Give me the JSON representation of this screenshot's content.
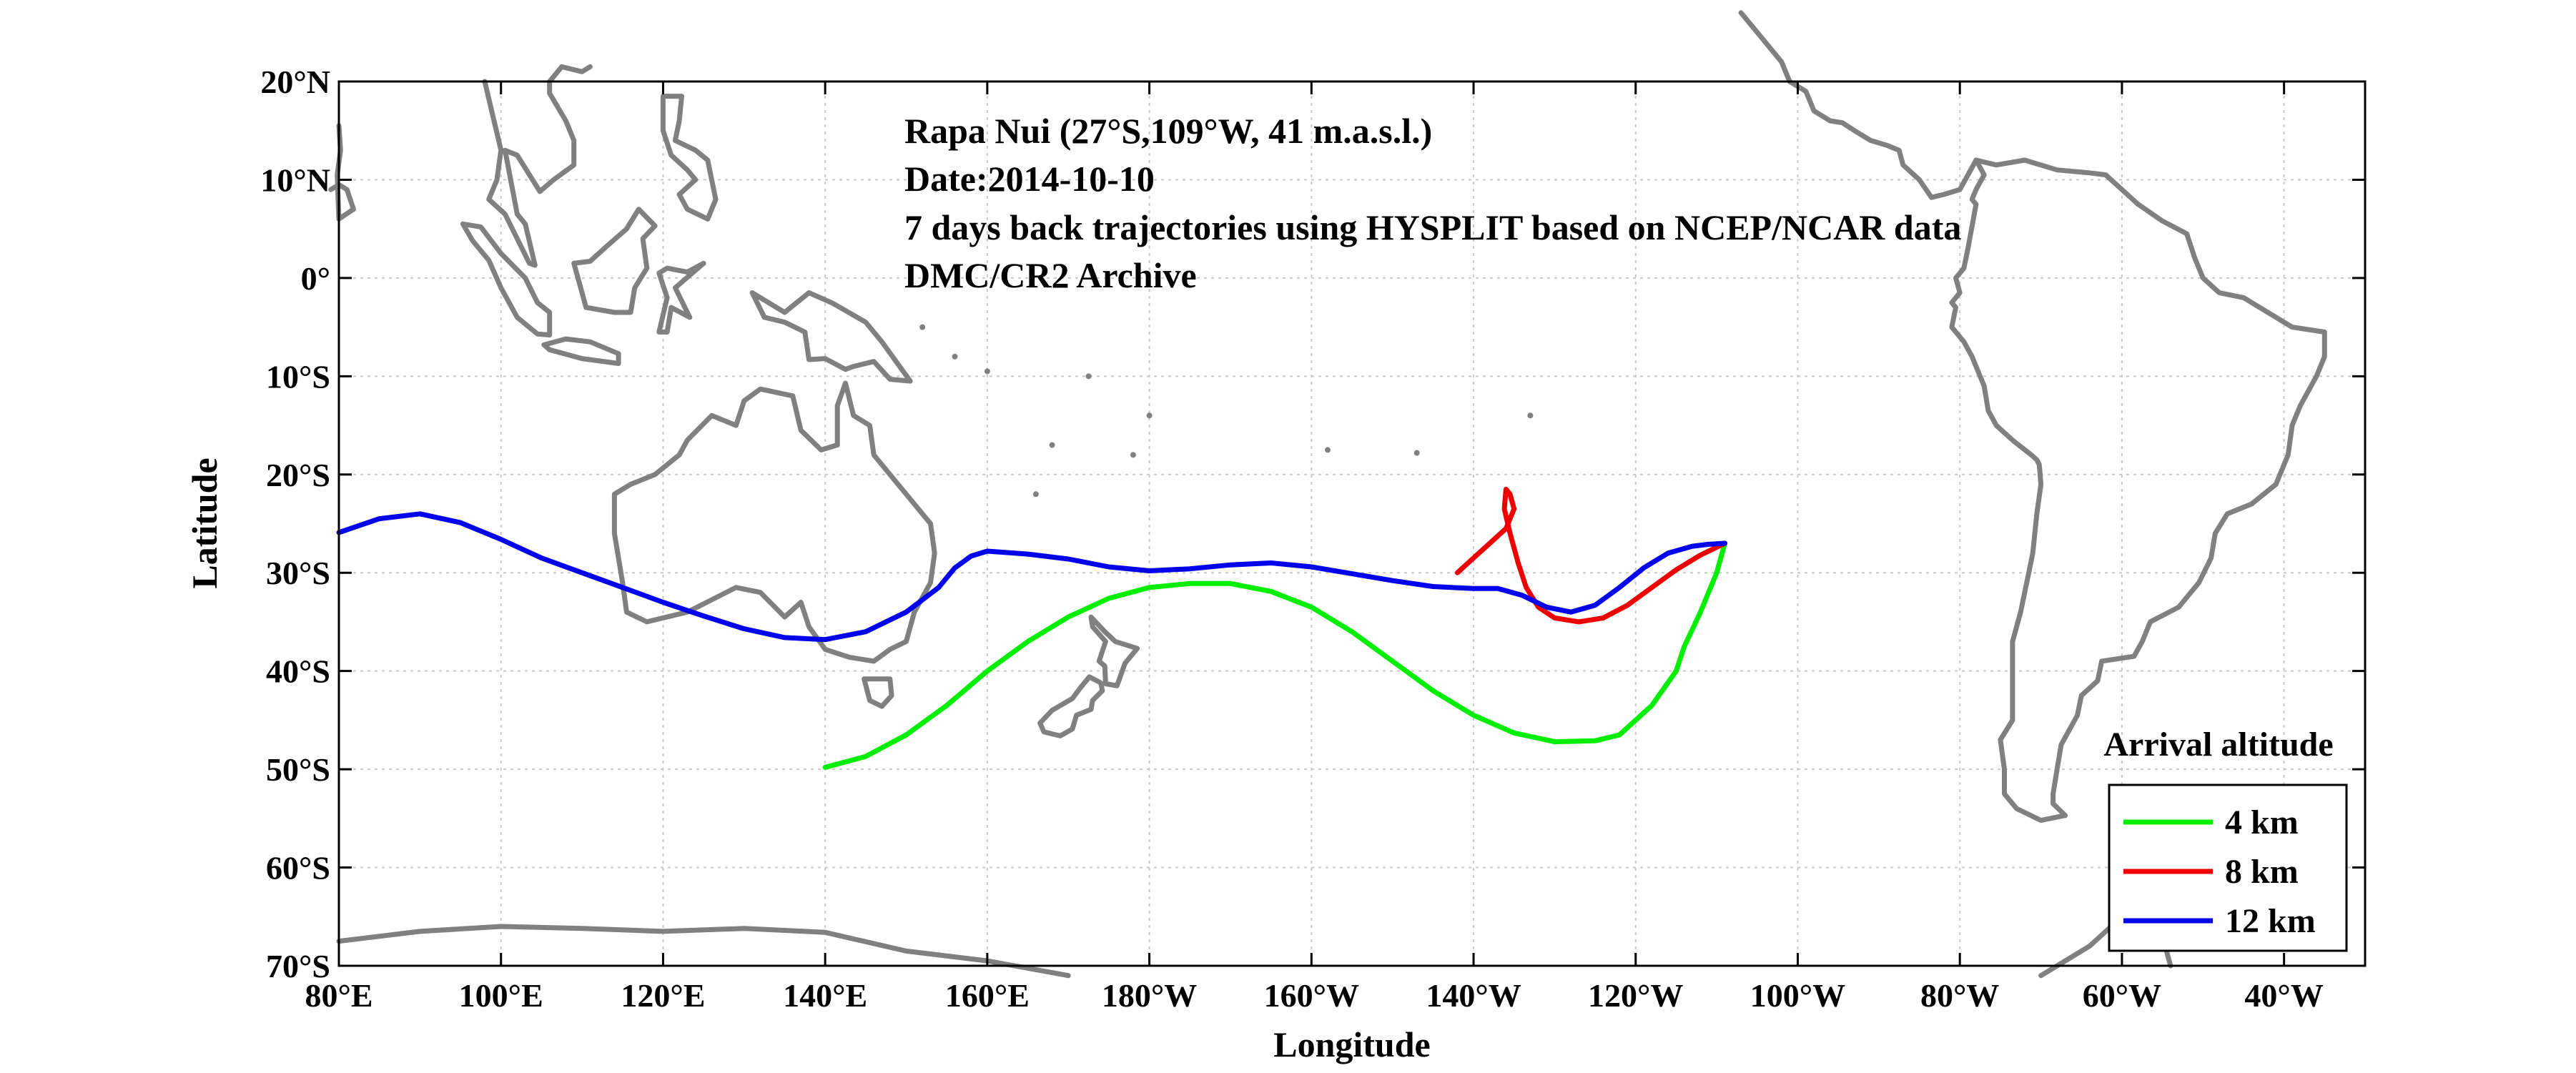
{
  "title_lines": [
    "Rapa Nui (27°S,109°W, 41 m.a.s.l.)",
    "Date:2014-10-10",
    "7 days back trajectories using HYSPLIT based on NCEP/NCAR data",
    "DMC/CR2 Archive"
  ],
  "axes": {
    "xlabel": "Longitude",
    "ylabel": "Latitude",
    "x_range_lon_east": [
      80,
      330
    ],
    "y_range_lat": [
      -70,
      20
    ],
    "x_ticks": [
      {
        "value": 80,
        "label": "80°E"
      },
      {
        "value": 100,
        "label": "100°E"
      },
      {
        "value": 120,
        "label": "120°E"
      },
      {
        "value": 140,
        "label": "140°E"
      },
      {
        "value": 160,
        "label": "160°E"
      },
      {
        "value": 180,
        "label": "180°W"
      },
      {
        "value": 200,
        "label": "160°W"
      },
      {
        "value": 220,
        "label": "140°W"
      },
      {
        "value": 240,
        "label": "120°W"
      },
      {
        "value": 260,
        "label": "100°W"
      },
      {
        "value": 280,
        "label": "80°W"
      },
      {
        "value": 300,
        "label": "60°W"
      },
      {
        "value": 320,
        "label": "40°W"
      }
    ],
    "y_ticks": [
      {
        "value": 20,
        "label": "20°N"
      },
      {
        "value": 10,
        "label": "10°N"
      },
      {
        "value": 0,
        "label": "0°"
      },
      {
        "value": -10,
        "label": "10°S"
      },
      {
        "value": -20,
        "label": "20°S"
      },
      {
        "value": -30,
        "label": "30°S"
      },
      {
        "value": -40,
        "label": "40°S"
      },
      {
        "value": -50,
        "label": "50°S"
      },
      {
        "value": -60,
        "label": "60°S"
      },
      {
        "value": -70,
        "label": "70°S"
      }
    ],
    "grid": true
  },
  "legend": {
    "title": "Arrival altitude",
    "placement": "bottom-right",
    "items": [
      {
        "label": "4 km",
        "color": "#00ee00"
      },
      {
        "label": "8 km",
        "color": "#ee0000"
      },
      {
        "label": "12 km",
        "color": "#0000ee"
      }
    ]
  },
  "colors": {
    "coastline": "#808080",
    "grid": "#c8c8c8"
  },
  "chart_data": {
    "type": "line",
    "xlabel": "Longitude",
    "ylabel": "Latitude",
    "xlim": [
      80,
      330
    ],
    "ylim": [
      -70,
      20
    ],
    "series": [
      {
        "name": "4 km",
        "color": "#00ee00",
        "lon_east": [
          140,
          145,
          150,
          155,
          160,
          165,
          170,
          175,
          180,
          185,
          190,
          195,
          200,
          205,
          210,
          215,
          220,
          225,
          230,
          235,
          238,
          242,
          245,
          246,
          248,
          250,
          251
        ],
        "lat": [
          -49.8,
          -48.7,
          -46.5,
          -43.5,
          -40,
          -37,
          -34.5,
          -32.6,
          -31.5,
          -31.1,
          -31.1,
          -31.9,
          -33.5,
          -36,
          -39,
          -42,
          -44.5,
          -46.3,
          -47.2,
          -47.1,
          -46.5,
          -43.5,
          -40,
          -37.5,
          -34,
          -30,
          -27
        ]
      },
      {
        "name": "8 km",
        "color": "#ee0000",
        "lon_east": [
          218,
          220,
          222,
          224,
          225,
          224.5,
          224,
          223.8,
          224.5,
          225.5,
          226.5,
          228,
          230,
          233,
          236,
          239,
          242,
          245,
          248,
          251
        ],
        "lat": [
          -30,
          -28.5,
          -27,
          -25.5,
          -23.5,
          -22,
          -21.5,
          -23.5,
          -26,
          -29,
          -31.5,
          -33.5,
          -34.6,
          -35,
          -34.6,
          -33.3,
          -31.5,
          -29.7,
          -28.2,
          -27
        ]
      },
      {
        "name": "12 km",
        "color": "#0000ee",
        "lon_east": [
          80,
          85,
          90,
          95,
          100,
          105,
          110,
          115,
          120,
          125,
          130,
          135,
          140,
          145,
          150,
          154,
          156,
          158,
          160,
          165,
          170,
          175,
          180,
          185,
          190,
          195,
          200,
          205,
          210,
          215,
          220,
          223,
          226,
          229,
          232,
          235,
          238,
          241,
          244,
          247,
          249,
          251
        ],
        "lat": [
          -25.9,
          -24.5,
          -24,
          -24.9,
          -26.6,
          -28.5,
          -30,
          -31.5,
          -33,
          -34.4,
          -35.7,
          -36.6,
          -36.8,
          -36,
          -34,
          -31.5,
          -29.5,
          -28.3,
          -27.8,
          -28.1,
          -28.6,
          -29.4,
          -29.8,
          -29.6,
          -29.2,
          -29,
          -29.4,
          -30.1,
          -30.8,
          -31.4,
          -31.6,
          -31.6,
          -32.3,
          -33.5,
          -34,
          -33.3,
          -31.5,
          -29.5,
          -28,
          -27.3,
          -27.1,
          -27
        ]
      }
    ]
  }
}
